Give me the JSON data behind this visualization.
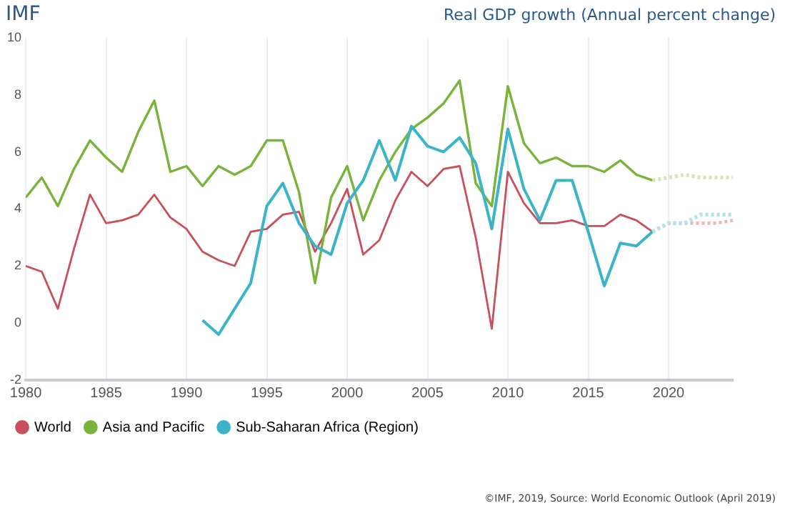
{
  "chart_data": {
    "type": "line",
    "title": "IMF",
    "subtitle": "Real GDP growth (Annual percent change)",
    "annotations": [
      "©IMF, 2019, Source: World Economic Outlook (April 2019)"
    ],
    "x": [
      1980,
      1981,
      1982,
      1983,
      1984,
      1985,
      1986,
      1987,
      1988,
      1989,
      1990,
      1991,
      1992,
      1993,
      1994,
      1995,
      1996,
      1997,
      1998,
      1999,
      2000,
      2001,
      2002,
      2003,
      2004,
      2005,
      2006,
      2007,
      2008,
      2009,
      2010,
      2011,
      2012,
      2013,
      2014,
      2015,
      2016,
      2017,
      2018,
      2019
    ],
    "series": [
      {
        "name": "World",
        "color": "#c8505a",
        "values": [
          2.0,
          1.8,
          0.5,
          2.6,
          4.5,
          3.5,
          3.6,
          3.8,
          4.5,
          3.7,
          3.3,
          2.5,
          2.2,
          2.0,
          3.2,
          3.3,
          3.8,
          3.9,
          2.5,
          3.5,
          4.7,
          2.4,
          2.9,
          4.3,
          5.3,
          4.8,
          5.4,
          5.5,
          3.0,
          -0.2,
          5.3,
          4.2,
          3.5,
          3.5,
          3.6,
          3.4,
          3.4,
          3.8,
          3.6,
          3.2
        ]
      },
      {
        "name": "Asia and Pacific",
        "color": "#78b43c",
        "values": [
          4.4,
          5.1,
          4.1,
          5.4,
          6.4,
          5.8,
          5.3,
          6.7,
          7.8,
          5.3,
          5.5,
          4.8,
          5.5,
          5.2,
          5.5,
          6.4,
          6.4,
          4.6,
          1.4,
          4.4,
          5.5,
          3.6,
          5.0,
          6.0,
          6.8,
          7.2,
          7.7,
          8.5,
          4.9,
          4.1,
          8.3,
          6.3,
          5.6,
          5.8,
          5.5,
          5.5,
          5.3,
          5.7,
          5.2,
          5.0
        ]
      },
      {
        "name": "Sub-Saharan Africa (Region)",
        "color": "#3cb4c8",
        "values": [
          null,
          null,
          null,
          null,
          null,
          null,
          null,
          null,
          null,
          null,
          null,
          0.1,
          -0.4,
          0.5,
          1.4,
          4.1,
          4.9,
          3.5,
          2.7,
          2.4,
          4.2,
          5.0,
          6.4,
          5.0,
          6.9,
          6.2,
          6.0,
          6.5,
          5.6,
          3.3,
          6.8,
          4.7,
          3.6,
          5.0,
          5.0,
          3.2,
          1.3,
          2.8,
          2.7,
          3.2
        ]
      },
      {
        "color": "#f0b4b4",
        "line_style": "dotted",
        "x": [
          2019,
          2020,
          2021,
          2022,
          2023,
          2024
        ],
        "values": [
          3.2,
          3.5,
          3.5,
          3.5,
          3.5,
          3.6
        ]
      },
      {
        "color": "#d2e6b4",
        "line_style": "dotted",
        "x": [
          2019,
          2020,
          2021,
          2022,
          2023,
          2024
        ],
        "values": [
          5.0,
          5.1,
          5.2,
          5.1,
          5.1,
          5.1
        ]
      },
      {
        "color": "#b4e1eb",
        "line_style": "dotted",
        "x": [
          2019,
          2020,
          2021,
          2022,
          2023,
          2024
        ],
        "values": [
          3.2,
          3.5,
          3.5,
          3.8,
          3.8,
          3.8
        ]
      }
    ],
    "xlim": [
      1980,
      2024
    ],
    "xticks": [
      1980,
      1985,
      1990,
      1995,
      2000,
      2005,
      2010,
      2015,
      2020
    ],
    "ylim": [
      -2,
      10
    ],
    "yticks": [
      -2,
      0,
      2,
      4,
      6,
      8,
      10
    ],
    "grid": "x",
    "legend": "bottom left",
    "marker": "none",
    "line_style": "solid"
  }
}
